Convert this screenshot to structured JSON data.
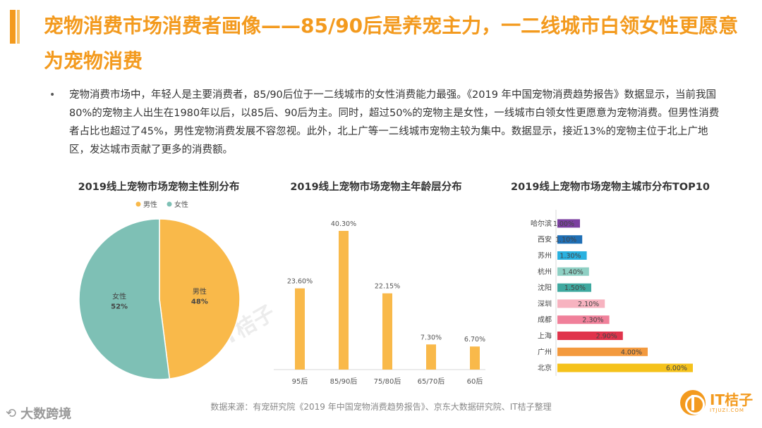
{
  "title": "宠物消费市场消费者画像——85/90后是养宠主力，一二线城市白领女性更愿意为宠物消费",
  "bullet": {
    "dot": "•",
    "text": "宠物消费市场中，年轻人是主要消费者，85/90后位于一二线城市的女性消费能力最强。《2019 年中国宠物消费趋势报告》数据显示，当前我国 80%的宠物主人出生在1980年以后，以85后、90后为主。同时，超过50%的宠物主是女性，一线城市白领女性更愿意为宠物消费。但男性消费者占比也超过了45%，男性宠物消费发展不容忽视。此外，北上广等一二线城市宠物主较为集中。数据显示，接近13%的宠物主位于北上广地区，发达城市贡献了更多的消费额。"
  },
  "source": "数据来源：有宠研究院《2019 年中国宠物消费趋势报告》、京东大数据研究院、IT桔子整理",
  "watermark_left": "大数跨境",
  "watermark_center": "IT桔子",
  "logo": {
    "main": "IT桔子",
    "sub": "ITJUZI.COM"
  },
  "colors": {
    "accent": "#f39a1e",
    "male": "#f9b94a",
    "female": "#7ec0b5",
    "bar": "#f9b94a"
  },
  "chart_data": [
    {
      "type": "pie",
      "title": "2019线上宠物市场宠物主性别分布",
      "legend_position": "top",
      "categories": [
        "男性",
        "女性"
      ],
      "values": [
        48,
        52
      ],
      "labels": [
        "48%",
        "52%"
      ],
      "colors": [
        "#f9b94a",
        "#7ec0b5"
      ]
    },
    {
      "type": "bar",
      "title": "2019线上宠物市场宠物主年龄层分布",
      "categories": [
        "95后",
        "85/90后",
        "75/80后",
        "65/70后",
        "60后"
      ],
      "values": [
        23.6,
        40.3,
        22.15,
        7.3,
        6.7
      ],
      "labels": [
        "23.60%",
        "40.30%",
        "22.15%",
        "7.30%",
        "6.70%"
      ],
      "ylim": [
        0,
        45
      ]
    },
    {
      "type": "bar",
      "orientation": "horizontal",
      "title": "2019线上宠物市场宠物主城市分布TOP10",
      "categories": [
        "哈尔滨",
        "西安",
        "苏州",
        "杭州",
        "沈阳",
        "深圳",
        "成都",
        "上海",
        "广州",
        "北京"
      ],
      "values": [
        1.0,
        1.1,
        1.3,
        1.4,
        1.5,
        2.1,
        2.3,
        2.9,
        4.0,
        6.0
      ],
      "labels": [
        "1.00%",
        "1.10%",
        "1.30%",
        "1.40%",
        "1.50%",
        "2.10%",
        "2.30%",
        "2.90%",
        "4.00%",
        "6.00%"
      ],
      "colors": [
        "#7b3fa0",
        "#1f6fb5",
        "#29b1e0",
        "#8fd0c4",
        "#3fa9a0",
        "#f7b3c0",
        "#f0809a",
        "#e0344c",
        "#f39a3e",
        "#f5c21b"
      ],
      "xlim": [
        0,
        6.0
      ]
    }
  ]
}
